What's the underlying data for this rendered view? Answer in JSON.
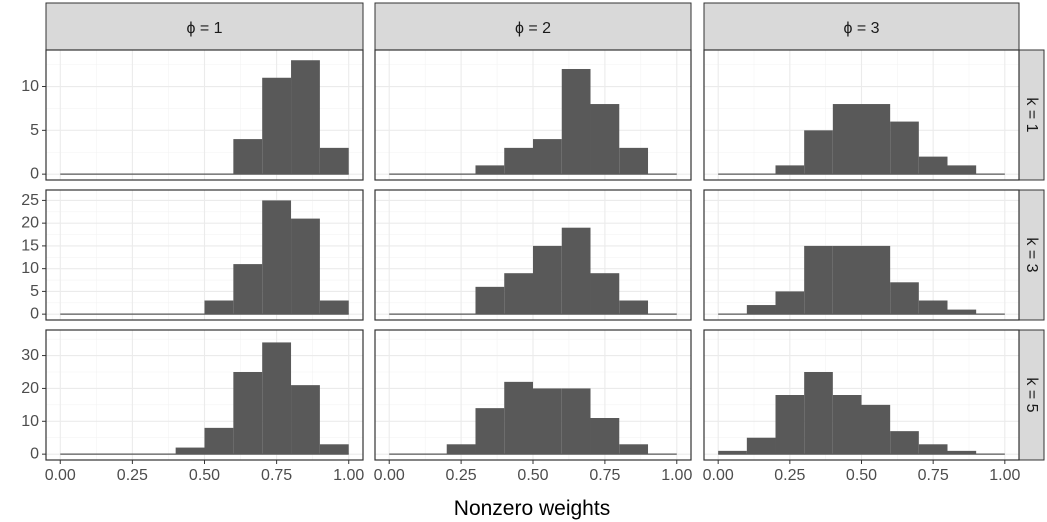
{
  "chart_data": {
    "type": "bar",
    "subtype": "faceted-histogram",
    "xlabel": "Nonzero weights",
    "ylabel": "",
    "xlim": [
      0,
      1
    ],
    "x_ticks": [
      "0.00",
      "0.25",
      "0.50",
      "0.75",
      "1.00"
    ],
    "bin_width": 0.1,
    "bin_edges": [
      0,
      0.1,
      0.2,
      0.3,
      0.4,
      0.5,
      0.6,
      0.7,
      0.8,
      0.9,
      1.0
    ],
    "columns": [
      "ϕ = 1",
      "ϕ = 2",
      "ϕ = 3"
    ],
    "rows": [
      {
        "label": "k = 1",
        "ylim": [
          0,
          13.5
        ],
        "y_ticks": [
          0,
          5,
          10
        ]
      },
      {
        "label": "k = 3",
        "ylim": [
          0,
          26
        ],
        "y_ticks": [
          0,
          5,
          10,
          15,
          20,
          25
        ]
      },
      {
        "label": "k = 5",
        "ylim": [
          0,
          36
        ],
        "y_ticks": [
          0,
          10,
          20,
          30
        ]
      }
    ],
    "panels": [
      {
        "row": "k = 1",
        "col": "ϕ = 1",
        "counts": [
          0,
          0,
          0,
          0,
          0,
          0,
          4,
          11,
          13,
          3
        ]
      },
      {
        "row": "k = 1",
        "col": "ϕ = 2",
        "counts": [
          0,
          0,
          0,
          1,
          3,
          4,
          12,
          8,
          3,
          0
        ]
      },
      {
        "row": "k = 1",
        "col": "ϕ = 3",
        "counts": [
          0,
          0,
          1,
          5,
          8,
          8,
          6,
          2,
          1,
          0
        ]
      },
      {
        "row": "k = 3",
        "col": "ϕ = 1",
        "counts": [
          0,
          0,
          0,
          0,
          0,
          3,
          11,
          25,
          21,
          3
        ]
      },
      {
        "row": "k = 3",
        "col": "ϕ = 2",
        "counts": [
          0,
          0,
          0,
          6,
          9,
          15,
          19,
          9,
          3,
          0
        ]
      },
      {
        "row": "k = 3",
        "col": "ϕ = 3",
        "counts": [
          0,
          2,
          5,
          15,
          15,
          15,
          7,
          3,
          1,
          0
        ]
      },
      {
        "row": "k = 5",
        "col": "ϕ = 1",
        "counts": [
          0,
          0,
          0,
          0,
          2,
          8,
          25,
          34,
          21,
          3
        ]
      },
      {
        "row": "k = 5",
        "col": "ϕ = 2",
        "counts": [
          0,
          0,
          3,
          14,
          22,
          20,
          20,
          11,
          3,
          0
        ]
      },
      {
        "row": "k = 5",
        "col": "ϕ = 3",
        "counts": [
          1,
          5,
          18,
          25,
          18,
          15,
          7,
          3,
          1,
          0
        ]
      }
    ],
    "grid": true,
    "bar_color": "#595959",
    "strip_color": "#d9d9d9"
  }
}
